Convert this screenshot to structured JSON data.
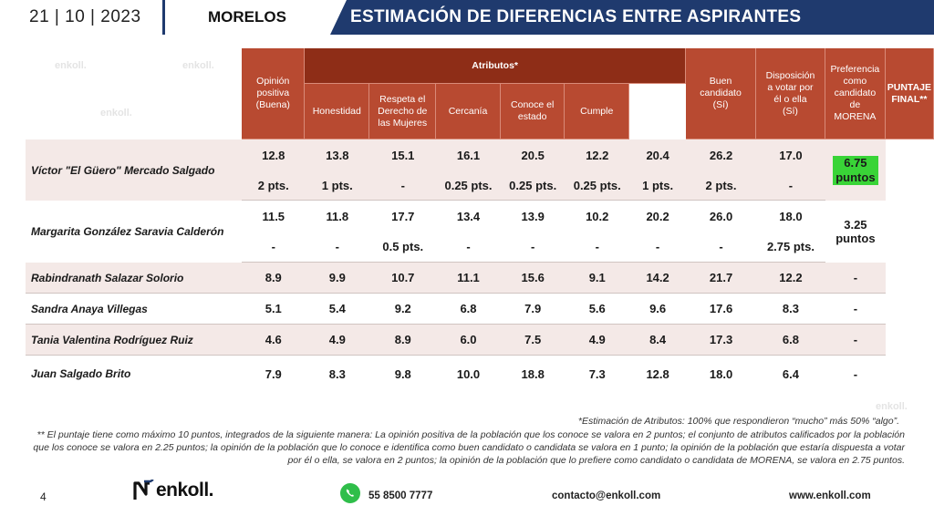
{
  "header": {
    "date": "21 | 10 | 2023",
    "state": "MORELOS",
    "title": "ESTIMACIÓN DE DIFERENCIAS ENTRE ASPIRANTES"
  },
  "watermark": "enkoll.",
  "table": {
    "group_header": "Atributos*",
    "columns": {
      "opinion": [
        "Opinión",
        "positiva",
        "(Buena)"
      ],
      "honestidad": "Honestidad",
      "respeta": [
        "Respeta el",
        "Derecho de",
        "las Mujeres"
      ],
      "cercania": "Cercanía",
      "conoce": [
        "Conoce el",
        "estado"
      ],
      "cumple": "Cumple",
      "buen": [
        "Buen",
        "candidato",
        "(Sí)"
      ],
      "disposicion": [
        "Disposición",
        "a votar por",
        "él o ella",
        "(Sí)"
      ],
      "preferencia": [
        "Preferencia",
        "como",
        "candidato",
        "de",
        "MORENA"
      ],
      "puntaje": [
        "PUNTAJE",
        "FINAL**"
      ]
    },
    "rows": [
      {
        "name": "Víctor \"El Güero\" Mercado Salgado",
        "values": [
          "12.8",
          "13.8",
          "15.1",
          "16.1",
          "20.5",
          "12.2",
          "20.4",
          "26.2",
          "17.0"
        ],
        "points": [
          "2 pts.",
          "1 pts.",
          "-",
          "0.25 pts.",
          "0.25 pts.",
          "0.25 pts.",
          "1 pts.",
          "2 pts.",
          "-"
        ],
        "final": [
          "6.75",
          "puntos"
        ]
      },
      {
        "name": "Margarita González Saravia Calderón",
        "values": [
          "11.5",
          "11.8",
          "17.7",
          "13.4",
          "13.9",
          "10.2",
          "20.2",
          "26.0",
          "18.0"
        ],
        "points": [
          "-",
          "-",
          "0.5 pts.",
          "-",
          "-",
          "-",
          "-",
          "-",
          "2.75 pts."
        ],
        "final": [
          "3.25",
          "puntos"
        ]
      },
      {
        "name": "Rabindranath Salazar Solorio",
        "values": [
          "8.9",
          "9.9",
          "10.7",
          "11.1",
          "15.6",
          "9.1",
          "14.2",
          "21.7",
          "12.2"
        ],
        "final": "-"
      },
      {
        "name": "Sandra Anaya Villegas",
        "values": [
          "5.1",
          "5.4",
          "9.2",
          "6.8",
          "7.9",
          "5.6",
          "9.6",
          "17.6",
          "8.3"
        ],
        "final": "-"
      },
      {
        "name": "Tania Valentina Rodríguez Ruiz",
        "values": [
          "4.6",
          "4.9",
          "8.9",
          "6.0",
          "7.5",
          "4.9",
          "8.4",
          "17.3",
          "6.8"
        ],
        "final": "-"
      },
      {
        "name": "Juan Salgado Brito",
        "values": [
          "7.9",
          "8.3",
          "9.8",
          "10.0",
          "18.8",
          "7.3",
          "12.8",
          "18.0",
          "6.4"
        ],
        "final": "-"
      }
    ]
  },
  "footnotes": {
    "attributes": "*Estimación de Atributos: 100% que respondieron “mucho” más 50% “algo”.",
    "scoring": "** El puntaje tiene como máximo 10 puntos, integrados de la siguiente manera: La opinión positiva de la población que los conoce se valora en 2 puntos; el conjunto de atributos calificados por la población que los conoce se valora en 2.25 puntos; la opinión de la población que lo conoce e identifica como buen candidato o candidata se valora en 1 punto; la opinión de la población que estaría dispuesta a votar por él o ella, se valora en 2 puntos; la opinión de la población que lo prefiere como candidato o candidata de MORENA, se valora en 2.75 puntos."
  },
  "footer": {
    "page": "4",
    "logo": "enkoll.",
    "phone": "55 8500 7777",
    "email": "contacto@enkoll.com",
    "web": "www.enkoll.com"
  },
  "colors": {
    "navy": "#1f3a6e",
    "header_red": "#b84a31",
    "header_dark": "#8e2d17",
    "row_shade": "#f4e9e7",
    "highlight": "#39d437",
    "whatsapp": "#2fbe4a"
  }
}
